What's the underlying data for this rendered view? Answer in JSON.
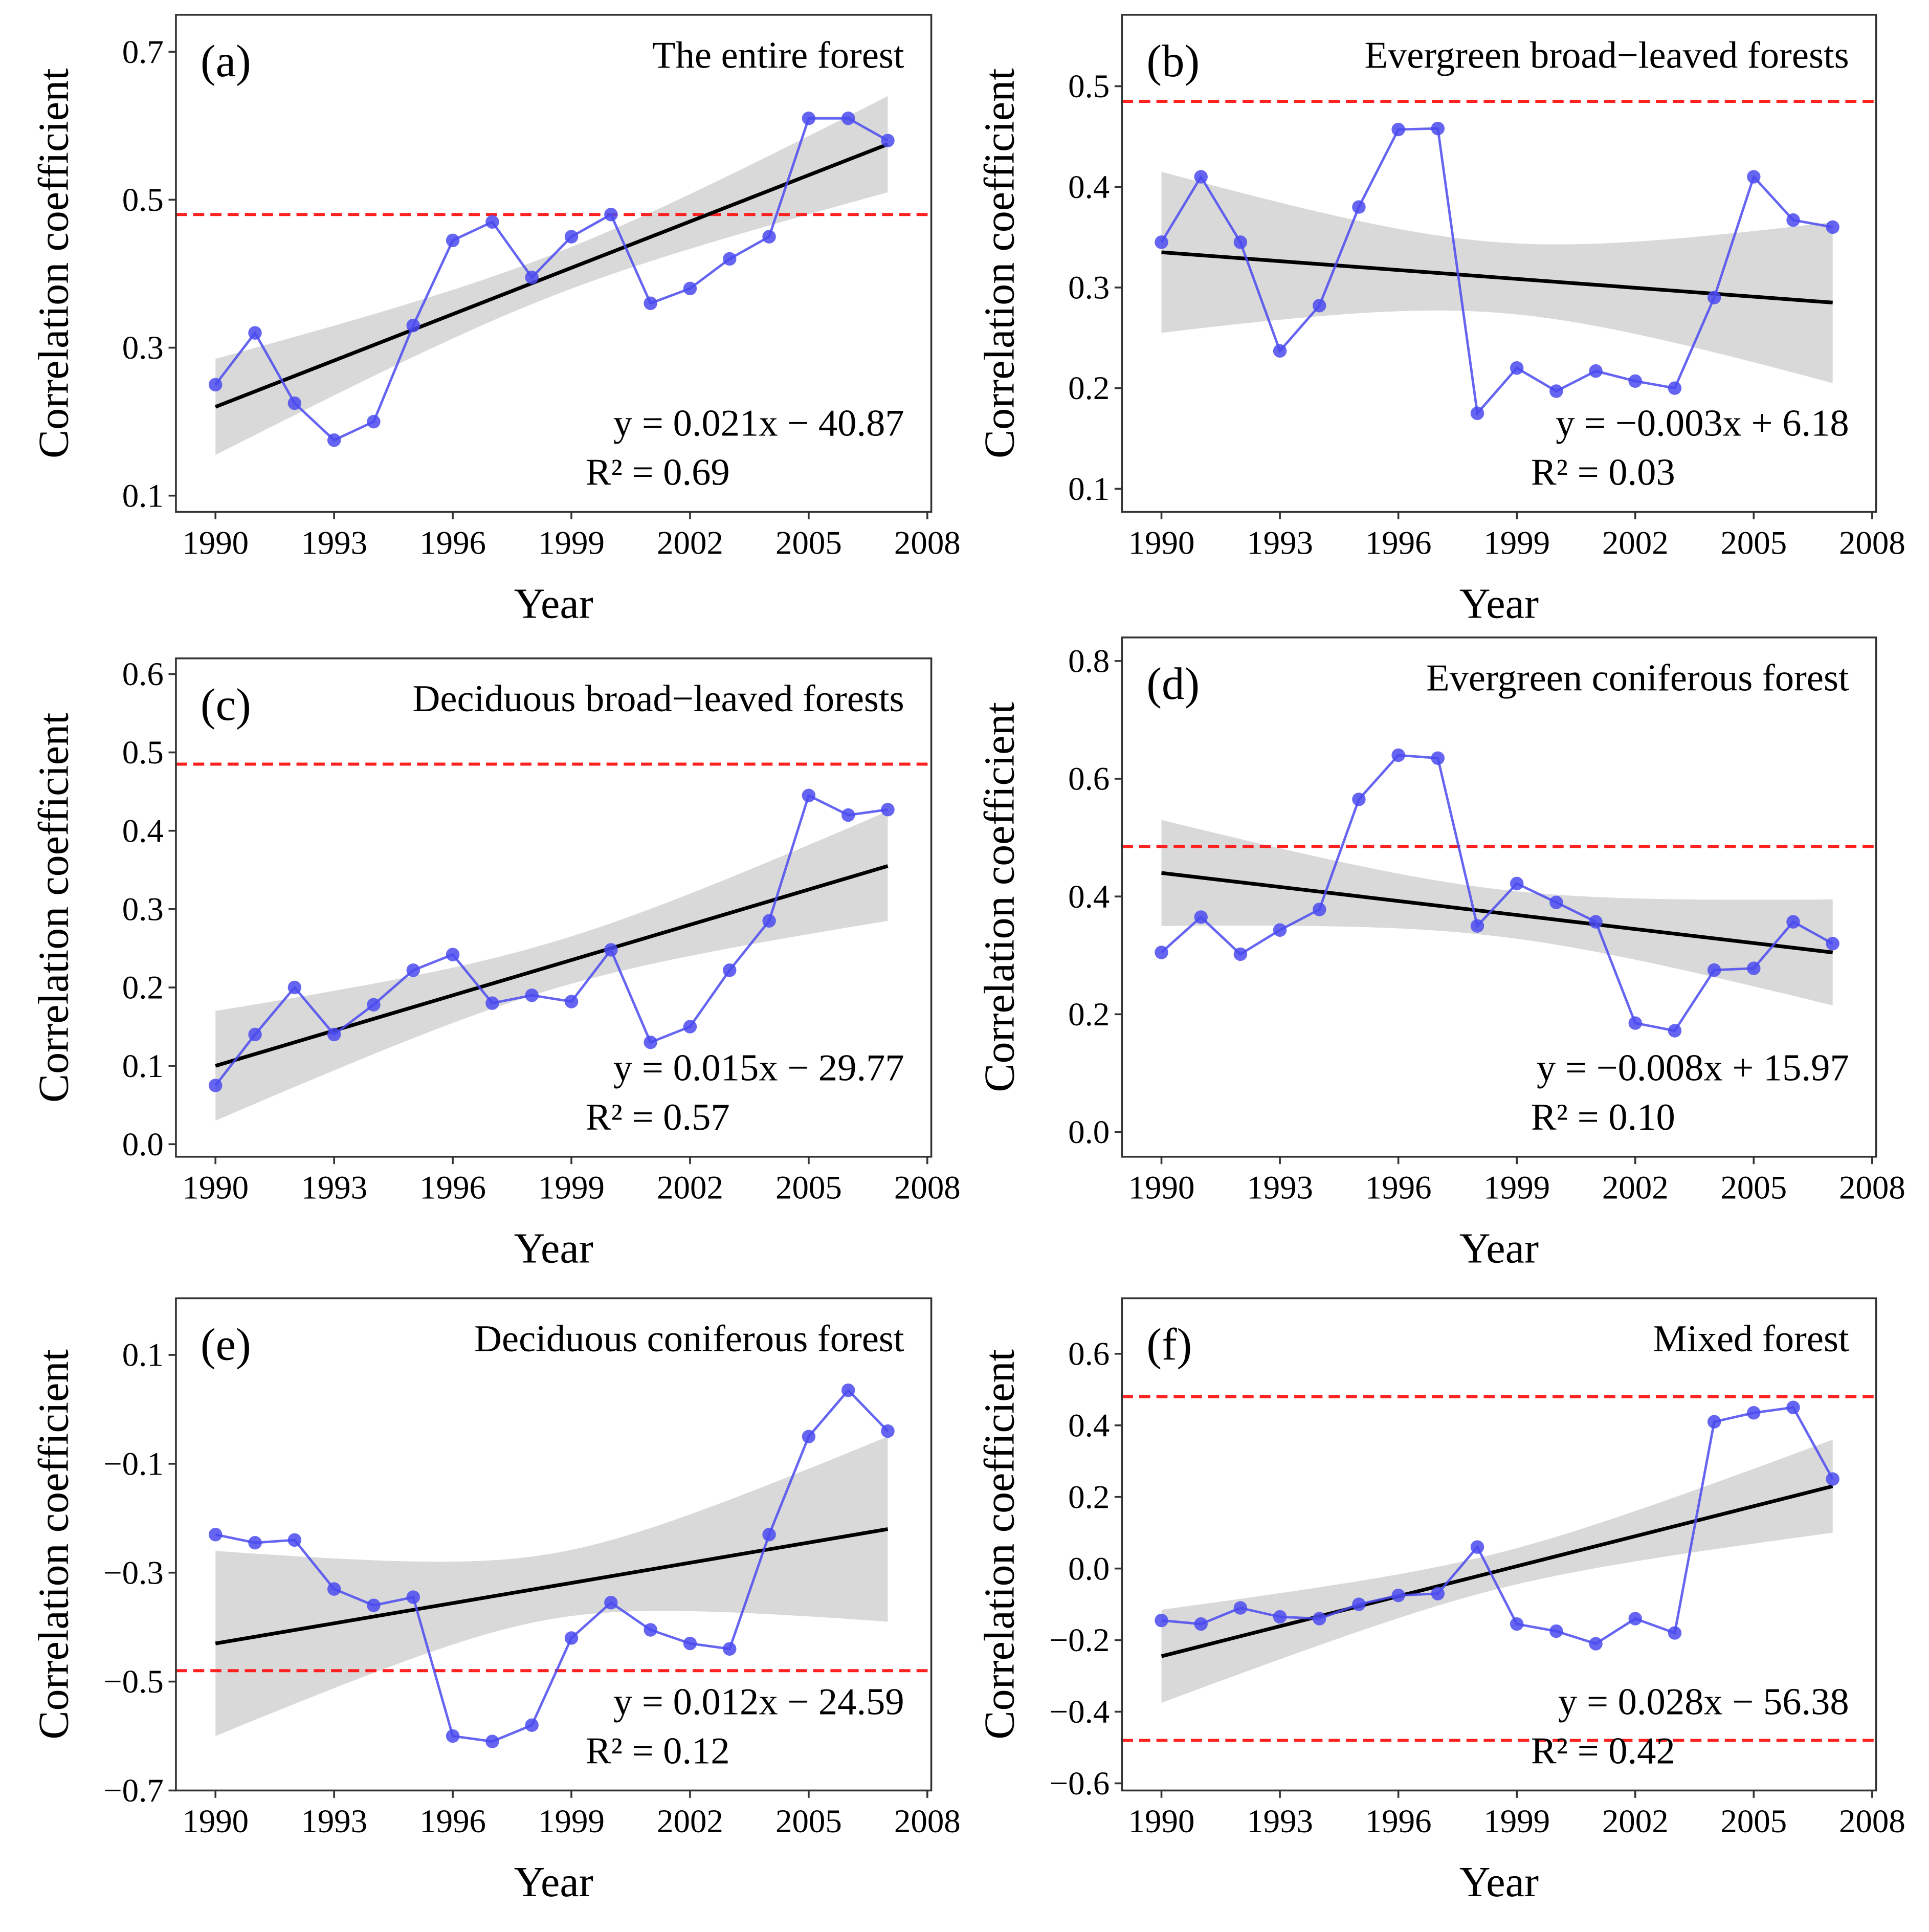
{
  "colors": {
    "series": "#4a4af0",
    "fit": "#000000",
    "band": "#d9d9d9",
    "threshold": "#ff2020",
    "axis": "#333333"
  },
  "chart_data": [
    {
      "type": "line",
      "panel_label": "(a)",
      "title": "The entire forest",
      "xlabel": "Year",
      "ylabel": "Correlation  coefficient",
      "x": [
        1990,
        1991,
        1992,
        1993,
        1994,
        1995,
        1996,
        1997,
        1998,
        1999,
        2000,
        2001,
        2002,
        2003,
        2004,
        2005,
        2006,
        2007
      ],
      "values": [
        0.25,
        0.32,
        0.225,
        0.175,
        0.2,
        0.33,
        0.445,
        0.47,
        0.395,
        0.45,
        0.48,
        0.36,
        0.38,
        0.42,
        0.45,
        0.61,
        0.61,
        0.58
      ],
      "fit_start": 0.22,
      "fit_end": 0.575,
      "ci_half_end": 0.065,
      "ci_half_mid": 0.028,
      "thresholds": [
        0.48
      ],
      "xlim": [
        1989,
        2008.1
      ],
      "ylim": [
        0.078,
        0.75
      ],
      "xticks": [
        "1990",
        "1993",
        "1996",
        "1999",
        "2002",
        "2005",
        "2008"
      ],
      "yticks": [
        "0.1",
        "0.3",
        "0.5",
        "0.7"
      ],
      "equation": "y = 0.021x − 40.87",
      "r2": "R² = 0.69"
    },
    {
      "type": "line",
      "panel_label": "(b)",
      "title": "Evergreen broad−leaved forests",
      "xlabel": "Year",
      "ylabel": "Correlation  coefficient",
      "x": [
        1990,
        1991,
        1992,
        1993,
        1994,
        1995,
        1996,
        1997,
        1998,
        1999,
        2000,
        2001,
        2002,
        2003,
        2004,
        2005,
        2006,
        2007
      ],
      "values": [
        0.345,
        0.41,
        0.345,
        0.237,
        0.282,
        0.38,
        0.457,
        0.458,
        0.175,
        0.22,
        0.197,
        0.217,
        0.207,
        0.2,
        0.29,
        0.41,
        0.367,
        0.36
      ],
      "fit_start": 0.335,
      "fit_end": 0.285,
      "ci_half_end": 0.08,
      "ci_half_mid": 0.035,
      "thresholds": [
        0.485
      ],
      "xlim": [
        1989,
        2008.1
      ],
      "ylim": [
        0.077,
        0.571
      ],
      "xticks": [
        "1990",
        "1993",
        "1996",
        "1999",
        "2002",
        "2005",
        "2008"
      ],
      "yticks": [
        "0.1",
        "0.2",
        "0.3",
        "0.4",
        "0.5"
      ],
      "equation": "y = −0.003x + 6.18",
      "r2": "R² = 0.03"
    },
    {
      "type": "line",
      "panel_label": "(c)",
      "title": "Deciduous broad−leaved forests",
      "xlabel": "Year",
      "ylabel": "Correlation  coefficient",
      "x": [
        1990,
        1991,
        1992,
        1993,
        1994,
        1995,
        1996,
        1997,
        1998,
        1999,
        2000,
        2001,
        2002,
        2003,
        2004,
        2005,
        2006,
        2007
      ],
      "values": [
        0.075,
        0.14,
        0.2,
        0.14,
        0.178,
        0.222,
        0.242,
        0.18,
        0.19,
        0.182,
        0.248,
        0.13,
        0.15,
        0.222,
        0.285,
        0.445,
        0.42,
        0.427
      ],
      "fit_start": 0.1,
      "fit_end": 0.355,
      "ci_half_end": 0.07,
      "ci_half_mid": 0.03,
      "thresholds": [
        0.485
      ],
      "xlim": [
        1989,
        2008.1
      ],
      "ylim": [
        -0.016,
        0.62
      ],
      "xticks": [
        "1990",
        "1993",
        "1996",
        "1999",
        "2002",
        "2005",
        "2008"
      ],
      "yticks": [
        "0.0",
        "0.1",
        "0.2",
        "0.3",
        "0.4",
        "0.5",
        "0.6"
      ],
      "equation": "y = 0.015x − 29.77",
      "r2": "R² = 0.57"
    },
    {
      "type": "line",
      "panel_label": "(d)",
      "title": "Evergreen coniferous forest",
      "xlabel": "Year",
      "ylabel": "Correlation  coefficient",
      "x": [
        1990,
        1991,
        1992,
        1993,
        1994,
        1995,
        1996,
        1997,
        1998,
        1999,
        2000,
        2001,
        2002,
        2003,
        2004,
        2005,
        2006,
        2007
      ],
      "values": [
        0.305,
        0.365,
        0.302,
        0.343,
        0.378,
        0.565,
        0.64,
        0.635,
        0.35,
        0.422,
        0.39,
        0.357,
        0.185,
        0.172,
        0.275,
        0.278,
        0.357,
        0.32
      ],
      "fit_start": 0.44,
      "fit_end": 0.305,
      "ci_half_end": 0.09,
      "ci_half_mid": 0.04,
      "thresholds": [
        0.485
      ],
      "xlim": [
        1989,
        2008.1
      ],
      "ylim": [
        -0.042,
        0.84
      ],
      "xticks": [
        "1990",
        "1993",
        "1996",
        "1999",
        "2002",
        "2005",
        "2008"
      ],
      "yticks": [
        "0.0",
        "0.2",
        "0.4",
        "0.6",
        "0.8"
      ],
      "equation": "y = −0.008x + 15.97",
      "r2": "R² = 0.10"
    },
    {
      "type": "line",
      "panel_label": "(e)",
      "title": "Deciduous coniferous forest",
      "xlabel": "Year",
      "ylabel": "Correlation  coefficient",
      "x": [
        1990,
        1991,
        1992,
        1993,
        1994,
        1995,
        1996,
        1997,
        1998,
        1999,
        2000,
        2001,
        2002,
        2003,
        2004,
        2005,
        2006,
        2007
      ],
      "values": [
        -0.23,
        -0.245,
        -0.24,
        -0.33,
        -0.36,
        -0.345,
        -0.6,
        -0.61,
        -0.58,
        -0.42,
        -0.355,
        -0.405,
        -0.43,
        -0.44,
        -0.23,
        -0.05,
        0.035,
        -0.04
      ],
      "fit_start": -0.43,
      "fit_end": -0.22,
      "ci_half_end": 0.17,
      "ci_half_mid": 0.06,
      "thresholds": [
        -0.48
      ],
      "xlim": [
        1989,
        2008.1
      ],
      "ylim": [
        -0.7,
        0.204
      ],
      "xticks": [
        "1990",
        "1993",
        "1996",
        "1999",
        "2002",
        "2005",
        "2008"
      ],
      "yticks": [
        "−0.7",
        "−0.5",
        "−0.3",
        "−0.1",
        "0.1"
      ],
      "equation": "y = 0.012x − 24.59",
      "r2": "R² = 0.12"
    },
    {
      "type": "line",
      "panel_label": "(f)",
      "title": "Mixed forest",
      "xlabel": "Year",
      "ylabel": "Correlation  coefficient",
      "x": [
        1990,
        1991,
        1992,
        1993,
        1994,
        1995,
        1996,
        1997,
        1998,
        1999,
        2000,
        2001,
        2002,
        2003,
        2004,
        2005,
        2006,
        2007
      ],
      "values": [
        -0.145,
        -0.155,
        -0.11,
        -0.135,
        -0.14,
        -0.1,
        -0.075,
        -0.07,
        0.06,
        -0.155,
        -0.175,
        -0.21,
        -0.14,
        -0.18,
        0.41,
        0.435,
        0.45,
        0.25
      ],
      "fit_start": -0.245,
      "fit_end": 0.23,
      "ci_half_end": 0.13,
      "ci_half_mid": 0.05,
      "thresholds": [
        0.48,
        -0.48
      ],
      "xlim": [
        1989,
        2008.1
      ],
      "ylim": [
        -0.62,
        0.755
      ],
      "xticks": [
        "1990",
        "1993",
        "1996",
        "1999",
        "2002",
        "2005",
        "2008"
      ],
      "yticks": [
        "−0.6",
        "−0.4",
        "−0.2",
        "0.0",
        "0.2",
        "0.4",
        "0.6"
      ],
      "equation": "y = 0.028x − 56.38",
      "r2": "R² = 0.42"
    }
  ]
}
